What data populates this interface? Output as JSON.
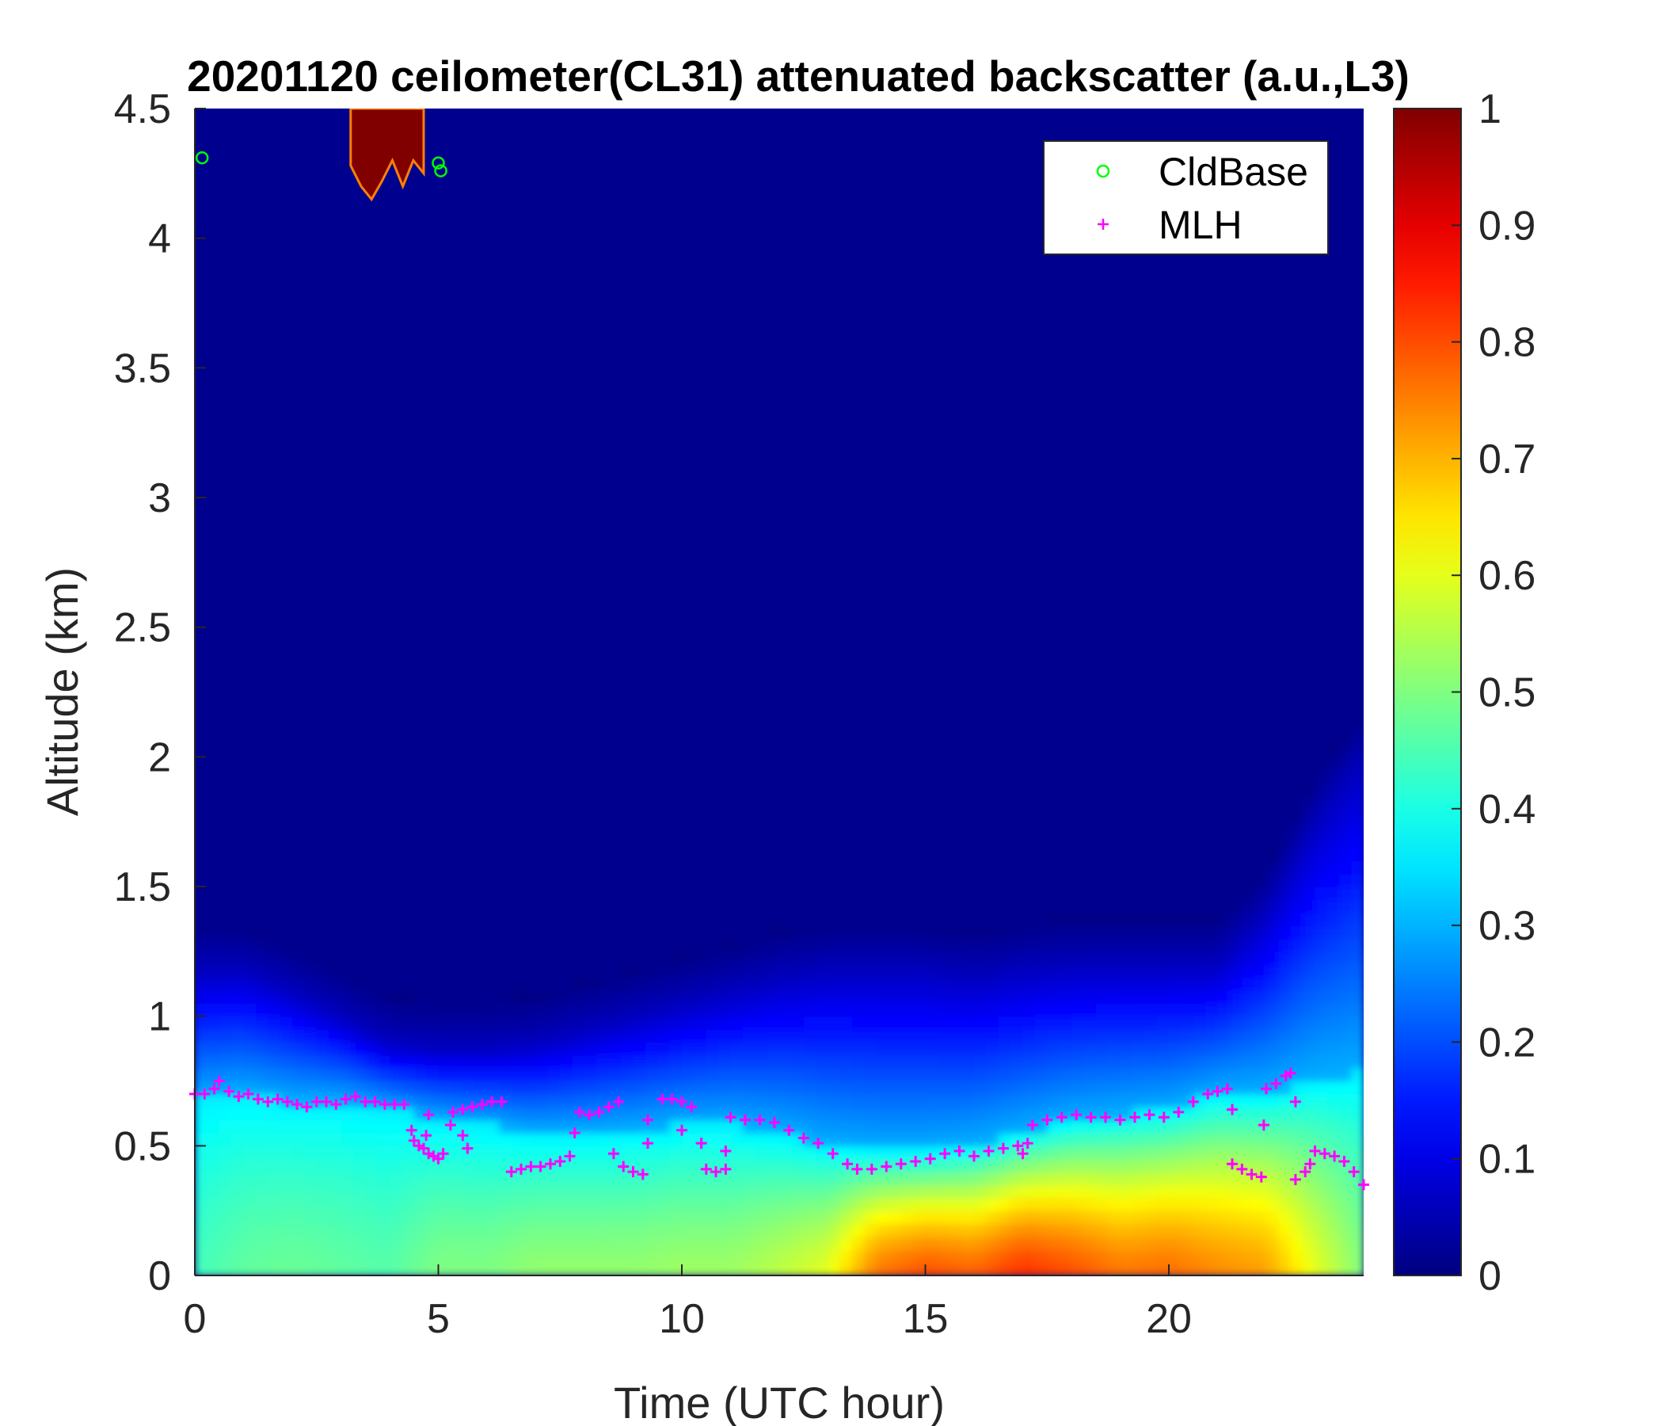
{
  "chart_data": {
    "type": "heatmap",
    "title": "20201120 ceilometer(CL31) attenuated backscatter (a.u.,L3)",
    "xlabel": "Time (UTC hour)",
    "ylabel": "Altitude (km)",
    "xlim": [
      0,
      24
    ],
    "ylim": [
      0,
      4.5
    ],
    "x_ticks": [
      "0",
      "5",
      "10",
      "15",
      "20"
    ],
    "y_ticks": [
      "0",
      "0.5",
      "1",
      "1.5",
      "2",
      "2.5",
      "3",
      "3.5",
      "4",
      "4.5"
    ],
    "colorbar": {
      "colormap": "jet",
      "range": [
        0,
        1
      ],
      "ticks": [
        "0",
        "0.1",
        "0.2",
        "0.3",
        "0.4",
        "0.5",
        "0.6",
        "0.7",
        "0.8",
        "0.9",
        "1"
      ]
    },
    "legend": {
      "position": "top-right",
      "entries": [
        {
          "label": "CldBase",
          "marker": "circle",
          "color": "#00ff00"
        },
        {
          "label": "MLH",
          "marker": "plus",
          "color": "#ff00ff"
        }
      ]
    },
    "background_value": 0.0,
    "aerosol_layer": {
      "time_hour": [
        0,
        1,
        2,
        3,
        4,
        5,
        6,
        7,
        8,
        9,
        10,
        11,
        12,
        13,
        14,
        15,
        16,
        17,
        18,
        19,
        20,
        21,
        22,
        23,
        24
      ],
      "surface_value": [
        0.44,
        0.47,
        0.48,
        0.47,
        0.46,
        0.5,
        0.5,
        0.52,
        0.52,
        0.52,
        0.53,
        0.53,
        0.56,
        0.6,
        0.76,
        0.8,
        0.78,
        0.83,
        0.8,
        0.76,
        0.77,
        0.74,
        0.72,
        0.6,
        0.5
      ],
      "mixed_top_km": [
        0.68,
        0.7,
        0.67,
        0.67,
        0.64,
        0.6,
        0.58,
        0.55,
        0.55,
        0.56,
        0.58,
        0.58,
        0.55,
        0.5,
        0.48,
        0.48,
        0.5,
        0.55,
        0.6,
        0.62,
        0.64,
        0.7,
        0.7,
        0.75,
        0.78
      ],
      "residual_top_km": [
        1.18,
        1.18,
        1.1,
        1.0,
        0.9,
        0.88,
        0.88,
        0.9,
        0.95,
        1.0,
        1.05,
        1.1,
        1.15,
        1.18,
        1.18,
        1.18,
        1.15,
        1.18,
        1.2,
        1.2,
        1.2,
        1.2,
        1.4,
        1.75,
        2.0
      ]
    },
    "cloud_patches": [
      {
        "t_start": 3.2,
        "t_end": 4.7,
        "base_km": [
          4.28,
          4.2,
          4.15,
          4.22,
          4.3,
          4.2,
          4.3,
          4.25
        ],
        "top_km": 4.5,
        "value": 1.0
      }
    ],
    "series": [
      {
        "name": "CldBase",
        "marker": "circle",
        "points": [
          [
            0.15,
            4.31
          ],
          [
            5.0,
            4.29
          ],
          [
            5.05,
            4.26
          ]
        ]
      },
      {
        "name": "MLH",
        "marker": "plus",
        "points": [
          [
            0.0,
            0.7
          ],
          [
            0.2,
            0.7
          ],
          [
            0.4,
            0.72
          ],
          [
            0.5,
            0.75
          ],
          [
            0.7,
            0.71
          ],
          [
            0.9,
            0.69
          ],
          [
            1.1,
            0.7
          ],
          [
            1.3,
            0.68
          ],
          [
            1.5,
            0.67
          ],
          [
            1.7,
            0.68
          ],
          [
            1.9,
            0.67
          ],
          [
            2.1,
            0.66
          ],
          [
            2.3,
            0.65
          ],
          [
            2.5,
            0.67
          ],
          [
            2.7,
            0.67
          ],
          [
            2.9,
            0.66
          ],
          [
            3.1,
            0.68
          ],
          [
            3.3,
            0.69
          ],
          [
            3.5,
            0.67
          ],
          [
            3.7,
            0.67
          ],
          [
            3.9,
            0.66
          ],
          [
            4.1,
            0.66
          ],
          [
            4.3,
            0.66
          ],
          [
            4.5,
            0.52
          ],
          [
            4.6,
            0.5
          ],
          [
            4.7,
            0.49
          ],
          [
            4.8,
            0.47
          ],
          [
            4.9,
            0.46
          ],
          [
            5.0,
            0.45
          ],
          [
            5.1,
            0.47
          ],
          [
            4.45,
            0.56
          ],
          [
            4.8,
            0.62
          ],
          [
            5.25,
            0.58
          ],
          [
            5.5,
            0.54
          ],
          [
            4.75,
            0.54
          ],
          [
            5.6,
            0.49
          ],
          [
            5.3,
            0.63
          ],
          [
            5.5,
            0.64
          ],
          [
            5.7,
            0.65
          ],
          [
            5.9,
            0.66
          ],
          [
            6.1,
            0.67
          ],
          [
            6.3,
            0.67
          ],
          [
            6.5,
            0.4
          ],
          [
            6.7,
            0.41
          ],
          [
            6.9,
            0.42
          ],
          [
            7.1,
            0.42
          ],
          [
            7.3,
            0.43
          ],
          [
            7.5,
            0.44
          ],
          [
            7.7,
            0.46
          ],
          [
            7.8,
            0.55
          ],
          [
            7.9,
            0.63
          ],
          [
            8.1,
            0.62
          ],
          [
            8.3,
            0.63
          ],
          [
            8.5,
            0.65
          ],
          [
            8.7,
            0.67
          ],
          [
            8.6,
            0.47
          ],
          [
            8.8,
            0.42
          ],
          [
            9.0,
            0.4
          ],
          [
            9.2,
            0.39
          ],
          [
            9.3,
            0.51
          ],
          [
            9.3,
            0.6
          ],
          [
            9.6,
            0.68
          ],
          [
            9.8,
            0.68
          ],
          [
            10.0,
            0.67
          ],
          [
            10.2,
            0.65
          ],
          [
            10.0,
            0.56
          ],
          [
            10.4,
            0.51
          ],
          [
            10.5,
            0.41
          ],
          [
            10.7,
            0.4
          ],
          [
            10.9,
            0.41
          ],
          [
            10.9,
            0.48
          ],
          [
            11.0,
            0.61
          ],
          [
            11.3,
            0.6
          ],
          [
            11.6,
            0.6
          ],
          [
            11.9,
            0.59
          ],
          [
            12.2,
            0.56
          ],
          [
            12.5,
            0.53
          ],
          [
            12.8,
            0.51
          ],
          [
            13.1,
            0.47
          ],
          [
            13.4,
            0.43
          ],
          [
            13.6,
            0.41
          ],
          [
            13.9,
            0.41
          ],
          [
            14.2,
            0.42
          ],
          [
            14.5,
            0.43
          ],
          [
            14.8,
            0.44
          ],
          [
            15.1,
            0.45
          ],
          [
            15.4,
            0.47
          ],
          [
            15.7,
            0.48
          ],
          [
            16.0,
            0.46
          ],
          [
            16.3,
            0.48
          ],
          [
            16.6,
            0.49
          ],
          [
            16.9,
            0.5
          ],
          [
            17.0,
            0.47
          ],
          [
            17.1,
            0.51
          ],
          [
            17.2,
            0.58
          ],
          [
            17.5,
            0.6
          ],
          [
            17.8,
            0.61
          ],
          [
            18.1,
            0.62
          ],
          [
            18.4,
            0.61
          ],
          [
            18.7,
            0.61
          ],
          [
            19.0,
            0.6
          ],
          [
            19.3,
            0.61
          ],
          [
            19.6,
            0.62
          ],
          [
            19.9,
            0.61
          ],
          [
            20.2,
            0.63
          ],
          [
            20.5,
            0.67
          ],
          [
            20.8,
            0.7
          ],
          [
            21.0,
            0.71
          ],
          [
            21.2,
            0.72
          ],
          [
            21.3,
            0.43
          ],
          [
            21.5,
            0.41
          ],
          [
            21.7,
            0.39
          ],
          [
            21.9,
            0.38
          ],
          [
            21.3,
            0.64
          ],
          [
            21.95,
            0.58
          ],
          [
            22.0,
            0.72
          ],
          [
            22.2,
            0.74
          ],
          [
            22.4,
            0.77
          ],
          [
            22.5,
            0.78
          ],
          [
            22.6,
            0.67
          ],
          [
            22.6,
            0.37
          ],
          [
            22.8,
            0.4
          ],
          [
            22.9,
            0.43
          ],
          [
            23.0,
            0.48
          ],
          [
            23.2,
            0.47
          ],
          [
            23.4,
            0.46
          ],
          [
            23.6,
            0.44
          ],
          [
            23.8,
            0.4
          ],
          [
            24.0,
            0.35
          ]
        ]
      }
    ]
  }
}
